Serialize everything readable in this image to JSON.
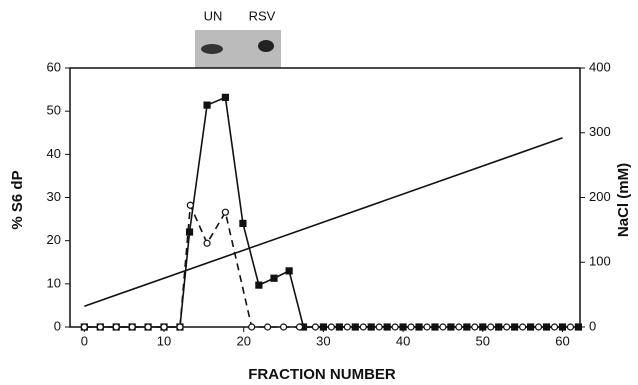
{
  "chart_data": {
    "type": "line",
    "xlabel": "FRACTION NUMBER",
    "ylabel": "% S6 dP",
    "y2label": "NaCl (mM)",
    "annotations": [
      "UN",
      "RSV"
    ],
    "xlim": [
      -1.8,
      62.2
    ],
    "xticks": [
      0,
      10,
      20,
      30,
      40,
      50,
      60
    ],
    "ylim": [
      0,
      60
    ],
    "yticks": [
      0,
      10,
      20,
      30,
      40,
      50,
      60
    ],
    "y2lim": [
      0,
      400
    ],
    "y2ticks": [
      0,
      100,
      200,
      300,
      400
    ],
    "series": [
      {
        "color": "#111111",
        "marker": "square",
        "filled": true,
        "dash": false,
        "x": [
          0,
          2,
          4,
          6,
          8,
          10,
          12,
          13.2,
          15.4,
          17.7,
          19.9,
          21.9,
          23.8,
          25.7,
          27.5,
          30,
          32,
          34,
          36,
          38,
          40,
          42,
          44,
          46,
          48,
          50,
          52,
          54,
          56,
          58,
          60,
          62
        ],
        "values": [
          0,
          0,
          0,
          0,
          0,
          0,
          0,
          22,
          51.4,
          53.2,
          24,
          9.7,
          11.3,
          13,
          0,
          0,
          0,
          0,
          0,
          0,
          0,
          0,
          0,
          0,
          0,
          0,
          0,
          0,
          0,
          0,
          0,
          0
        ]
      },
      {
        "color": "#111111",
        "marker": "circle",
        "filled": false,
        "dash": true,
        "x": [
          0,
          2,
          4,
          6,
          8,
          10,
          12,
          13.3,
          15.4,
          17.7,
          21,
          23,
          25,
          27,
          29,
          31,
          33,
          35,
          37,
          39,
          41,
          43,
          45,
          47,
          49,
          51,
          53,
          55,
          57,
          59,
          61
        ],
        "values": [
          0,
          0,
          0,
          0,
          0,
          0,
          0,
          28.2,
          19.4,
          26.6,
          0,
          0,
          0,
          0,
          0,
          0,
          0,
          0,
          0,
          0,
          0,
          0,
          0,
          0,
          0,
          0,
          0,
          0,
          0,
          0,
          0
        ]
      },
      {
        "color": "#111111",
        "marker": "none",
        "filled": false,
        "dash": false,
        "axis": "y2",
        "x": [
          0,
          60
        ],
        "values": [
          32,
          292
        ]
      }
    ]
  }
}
